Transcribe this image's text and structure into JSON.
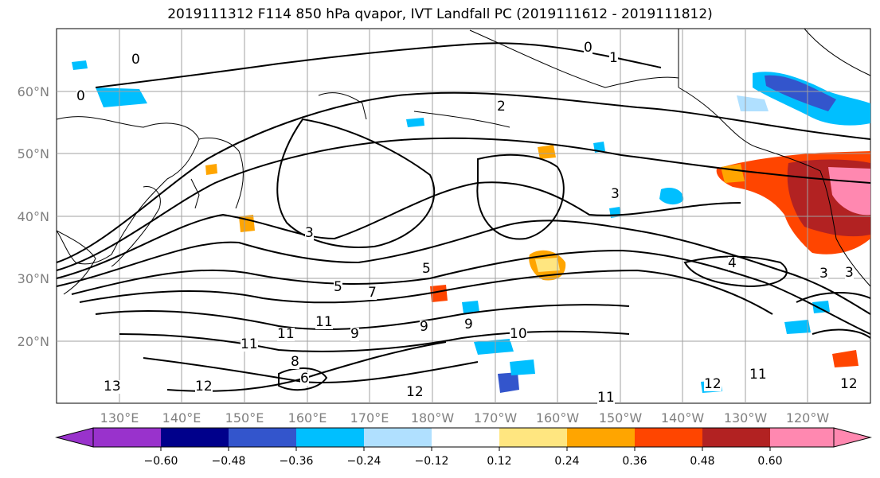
{
  "title": "2019111312 F114 850 hPa qvapor, IVT Landfall PC (2019111612 - 2019111812)",
  "lat_labels": [
    "60°N",
    "50°N",
    "40°N",
    "30°N",
    "20°N"
  ],
  "lon_labels": [
    "130°E",
    "140°E",
    "150°E",
    "160°E",
    "170°E",
    "180°W",
    "170°W",
    "160°W",
    "150°W",
    "140°W",
    "130°W",
    "120°W"
  ],
  "contour_labels": [
    "0",
    "0",
    "0",
    "1",
    "2",
    "3",
    "3",
    "3",
    "4",
    "3",
    "5",
    "5",
    "6",
    "7",
    "8",
    "9",
    "9",
    "9",
    "10",
    "11",
    "11",
    "11",
    "11",
    "12",
    "12",
    "12",
    "12",
    "13",
    "11"
  ],
  "colorbar": {
    "ticks": [
      "−0.60",
      "−0.48",
      "−0.36",
      "−0.24",
      "−0.12",
      "0.12",
      "0.24",
      "0.36",
      "0.48",
      "0.60"
    ],
    "colors": [
      "#9932cc",
      "#00008b",
      "#3355cc",
      "#00bfff",
      "#b0e0ff",
      "#ffffff",
      "#ffe680",
      "#ffa500",
      "#ff4500",
      "#b22222",
      "#ff88b0"
    ]
  },
  "colors": {
    "land_outline": "#000000",
    "grid": "#a0a0a0",
    "contour": "#000000"
  }
}
